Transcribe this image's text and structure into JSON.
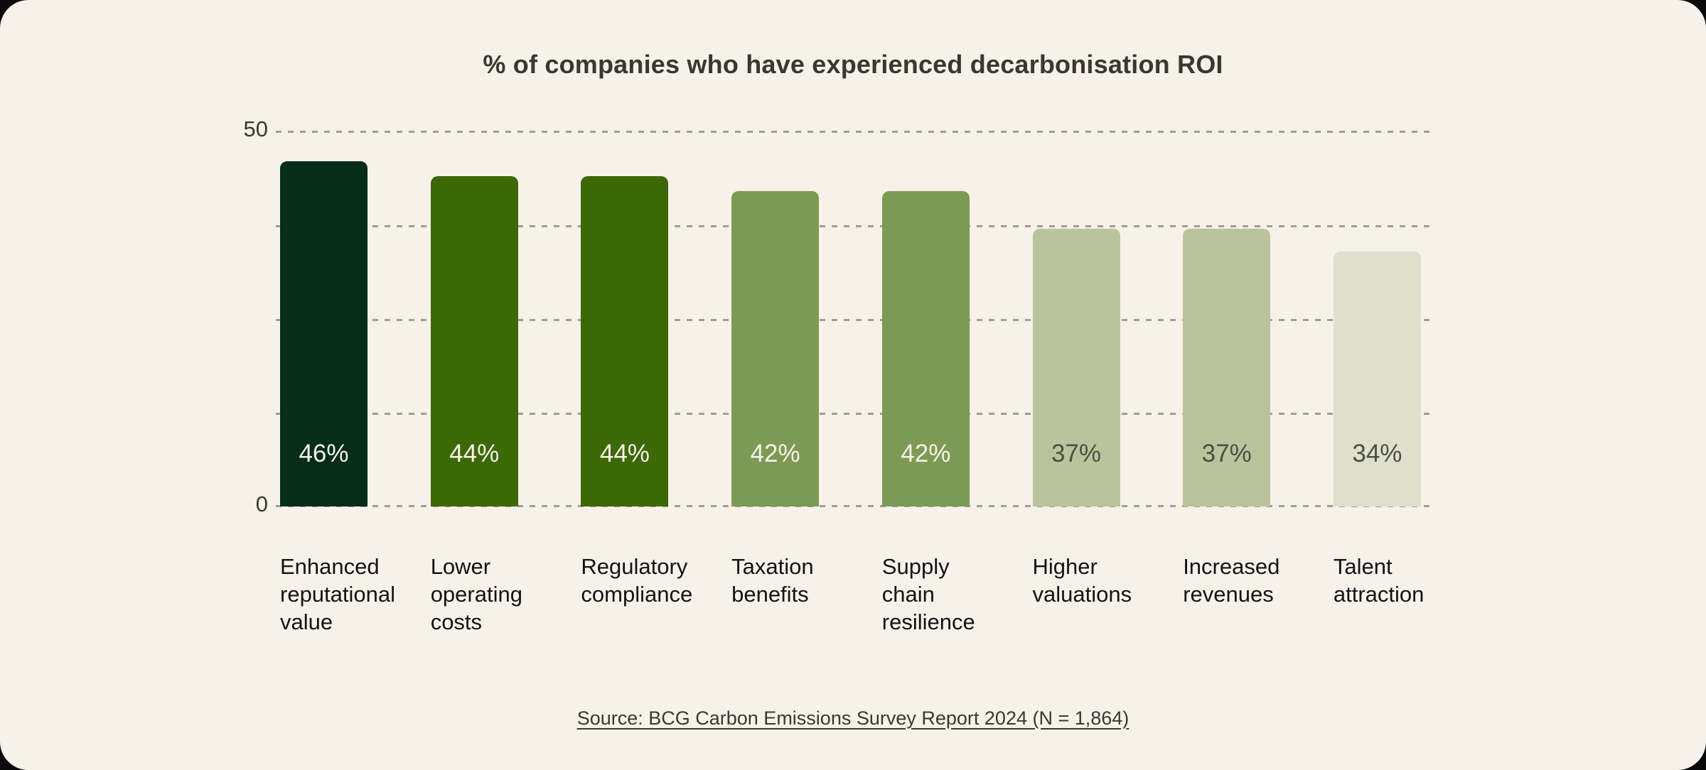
{
  "title": "% of companies who have experienced decarbonisation ROI",
  "source": {
    "text": "Source: BCG Carbon Emissions Survey Report 2024 (N = 1,864)"
  },
  "axis": {
    "max_label": "50",
    "min_label": "0"
  },
  "colors": {
    "card_background": "#f7f1e9",
    "outside_background": "#0a0a0a",
    "gridline": "#a29c91",
    "title_text": "#3a3733",
    "axis_text": "#3a3733",
    "category_text": "#131313",
    "value_text_light": "#f7f2ea",
    "value_text_dark": "#4b4f43"
  },
  "chart_data": {
    "type": "bar",
    "title": "% of companies who have experienced decarbonisation ROI",
    "xlabel": "",
    "ylabel": "",
    "ylim": [
      0,
      50
    ],
    "grid": "horizontal dotted lines at 0, 12.5, 25, 37.5, 50",
    "legend": "none",
    "categories": [
      "Enhanced reputational value",
      "Lower operating costs",
      "Regulatory compliance",
      "Taxation benefits",
      "Supply chain resilience",
      "Higher valuations",
      "Increased revenues",
      "Talent attraction"
    ],
    "values": [
      46,
      44,
      44,
      42,
      42,
      37,
      37,
      34
    ],
    "bars": [
      {
        "category_lines": "Enhanced\nreputational\nvalue",
        "value": 46,
        "label": "46%",
        "color": "#052d1a",
        "label_style": "light"
      },
      {
        "category_lines": "Lower\noperating\ncosts",
        "value": 44,
        "label": "44%",
        "color": "#3d6806",
        "label_style": "light"
      },
      {
        "category_lines": "Regulatory\ncompliance",
        "value": 44,
        "label": "44%",
        "color": "#3d6806",
        "label_style": "light"
      },
      {
        "category_lines": "Taxation\nbenefits",
        "value": 42,
        "label": "42%",
        "color": "#7c9a55",
        "label_style": "light"
      },
      {
        "category_lines": "Supply\nchain\nresilience",
        "value": 42,
        "label": "42%",
        "color": "#7c9a55",
        "label_style": "light"
      },
      {
        "category_lines": "Higher\nvaluations",
        "value": 37,
        "label": "37%",
        "color": "#bac49c",
        "label_style": "dark"
      },
      {
        "category_lines": "Increased\nrevenues",
        "value": 37,
        "label": "37%",
        "color": "#bac49c",
        "label_style": "dark"
      },
      {
        "category_lines": "Talent\nattraction",
        "value": 34,
        "label": "34%",
        "color": "#dedfcc",
        "label_style": "dark"
      }
    ]
  }
}
